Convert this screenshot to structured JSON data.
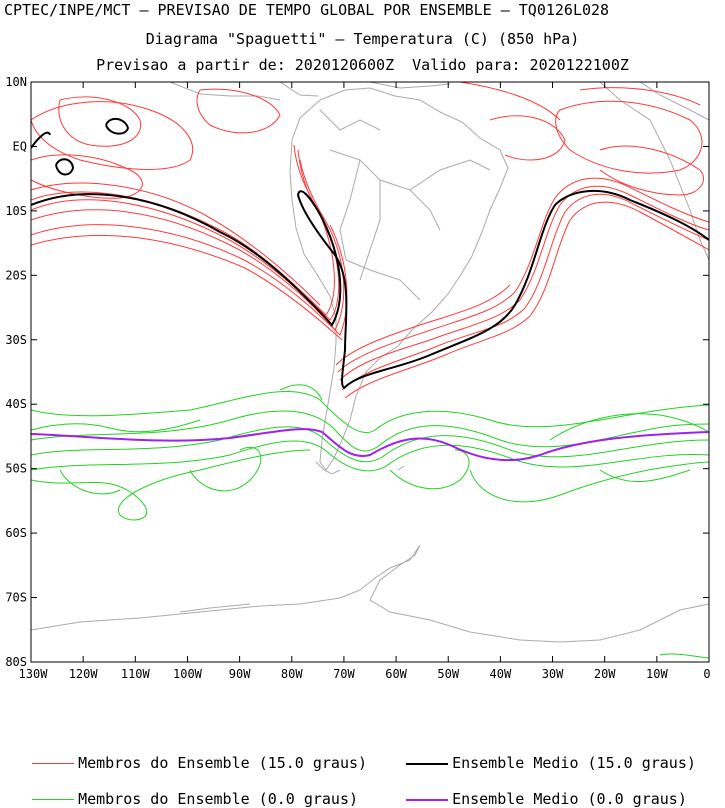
{
  "header": {
    "line1": "CPTEC/INPE/MCT – PREVISAO DE TEMPO GLOBAL POR ENSEMBLE – TQ0126L028",
    "line2": "Diagrama \"Spaguetti\" – Temperatura (C) (850 hPa)",
    "line3": "Previsao a partir de: 2020120600Z  Valido para: 2020122100Z"
  },
  "axes": {
    "lat_labels": [
      "10N",
      "EQ",
      "10S",
      "20S",
      "30S",
      "40S",
      "50S",
      "60S",
      "70S",
      "80S"
    ],
    "lon_labels": [
      "130W",
      "120W",
      "110W",
      "100W",
      "90W",
      "80W",
      "70W",
      "60W",
      "50W",
      "40W",
      "30W",
      "20W",
      "10W",
      "0"
    ]
  },
  "legend": {
    "red_members": "Membros do Ensemble (15.0 graus)",
    "black_mean": "Ensemble Medio (15.0 graus)",
    "green_members": "Membros do Ensemble (0.0 graus)",
    "purple_mean": "Ensemble Medio (0.0 graus)"
  },
  "colors": {
    "red": "#ff3a3a",
    "black": "#000000",
    "green": "#22d422",
    "purple": "#a020f0",
    "coast": "#aaaaaa"
  }
}
